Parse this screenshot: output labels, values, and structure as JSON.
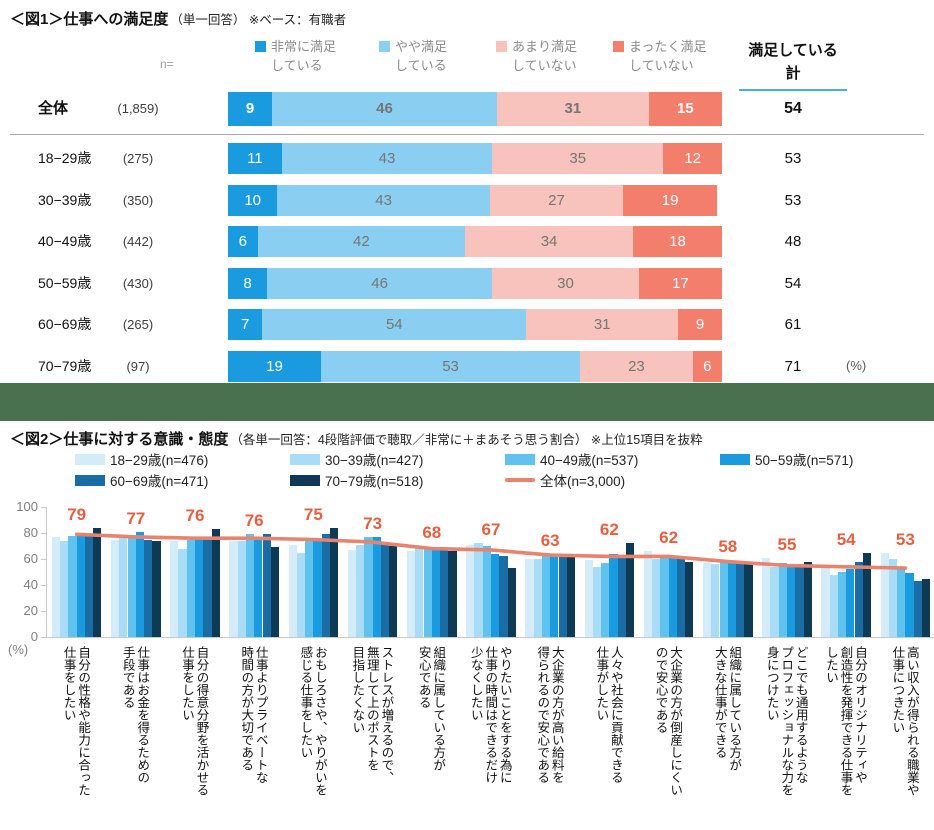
{
  "chart_data": [
    {
      "type": "bar",
      "variant": "horizontal-stacked",
      "title_bold": "＜図1＞仕事への満足度",
      "title_note": "（単一回答） ※ベース：有職者",
      "n_label": "n=",
      "total_header": "満足している\n計",
      "unit": "(%)",
      "underline_color": "#45b0e5",
      "series_labels": [
        "非常に満足\nしている",
        "やや満足\nしている",
        "あまり満足\nしていない",
        "まったく満足\nしていない"
      ],
      "series_colors": [
        "#1a9bdf",
        "#8acff2",
        "#f8c3bd",
        "#f37e6c"
      ],
      "value_text_colors": [
        "#ffffff",
        "#757575",
        "#757575",
        "#ffffff"
      ],
      "rows": [
        {
          "label": "全体",
          "n": "(1,859)",
          "values": [
            9,
            46,
            31,
            15
          ],
          "total": "54",
          "emphasis": true
        },
        {
          "label": "18−29歳",
          "n": "(275)",
          "values": [
            11,
            43,
            35,
            12
          ],
          "total": "53",
          "emphasis": false
        },
        {
          "label": "30−39歳",
          "n": "(350)",
          "values": [
            10,
            43,
            27,
            19
          ],
          "total": "53",
          "emphasis": false
        },
        {
          "label": "40−49歳",
          "n": "(442)",
          "values": [
            6,
            42,
            34,
            18
          ],
          "total": "48",
          "emphasis": false
        },
        {
          "label": "50−59歳",
          "n": "(430)",
          "values": [
            8,
            46,
            30,
            17
          ],
          "total": "54",
          "emphasis": false
        },
        {
          "label": "60−69歳",
          "n": "(265)",
          "values": [
            7,
            54,
            31,
            9
          ],
          "total": "61",
          "emphasis": false
        },
        {
          "label": "70−79歳",
          "n": "(97)",
          "values": [
            19,
            53,
            23,
            6
          ],
          "total": "71",
          "emphasis": false
        }
      ]
    },
    {
      "type": "bar",
      "variant": "grouped-with-trend-line",
      "title_bold": "＜図2＞仕事に対する意識・態度",
      "title_note": "（各単一回答：4段階評価で聴取／非常に＋まあそう思う割合） ※上位15項目を抜粋",
      "ylim": [
        0,
        100
      ],
      "yticks": [
        0,
        20,
        40,
        60,
        80,
        100
      ],
      "unit": "(%)",
      "grid": false,
      "legend_position": "top",
      "categories": [
        "自分の性格や能力に合った\n仕事をしたい",
        "仕事はお金を得るための\n手段である",
        "自分の得意分野を活かせる\n仕事をしたい",
        "仕事よりプライベートな\n時間の方が大切である",
        "おもしろさや、やりがいを\n感じる仕事をしたい",
        "ストレスが増えるので、\n無理して上のポストを\n目指したくない",
        "組織に属している方が\n安心である",
        "やりたいことをする為に\n仕事の時間はできるだけ\n少なくしたい",
        "大企業の方が高い給料を\n得られるので安心である",
        "人々や社会に貢献できる\n仕事がしたい",
        "大企業の方が倒産しにくい\nので安心である",
        "組織に属している方が\n大きな仕事ができる",
        "どこでも通用するような\nプロフェッショナルな力を\n身につけたい",
        "自分のオリジナリティや\n創造性を発揮できる仕事を\nしたい",
        "高い収入が得られる職業や\n仕事につきたい"
      ],
      "series": [
        {
          "name": "18−29歳(n=476)",
          "color": "#d4ebf9",
          "values": [
            77,
            75,
            74,
            74,
            71,
            67,
            66,
            71,
            60,
            59,
            66,
            57,
            61,
            53,
            65
          ]
        },
        {
          "name": "30−39歳(n=427)",
          "color": "#a9dcf6",
          "values": [
            74,
            77,
            68,
            74,
            65,
            71,
            70,
            72,
            60,
            54,
            60,
            56,
            54,
            48,
            60
          ]
        },
        {
          "name": "40−49歳(n=537)",
          "color": "#5fc2ef",
          "values": [
            78,
            77,
            75,
            79,
            74,
            77,
            69,
            70,
            63,
            57,
            61,
            59,
            57,
            50,
            53
          ]
        },
        {
          "name": "50−59歳(n=571)",
          "color": "#1a9bdf",
          "values": [
            79,
            81,
            75,
            75,
            74,
            77,
            68,
            64,
            63,
            64,
            62,
            58,
            54,
            52,
            49
          ]
        },
        {
          "name": "60−69歳(n=471)",
          "color": "#1a6ca5",
          "values": [
            79,
            75,
            75,
            79,
            79,
            72,
            67,
            62,
            64,
            63,
            62,
            57,
            54,
            58,
            43
          ]
        },
        {
          "name": "70−79歳(n=518)",
          "color": "#0e3a55",
          "values": [
            84,
            74,
            83,
            69,
            84,
            70,
            66,
            53,
            62,
            72,
            58,
            56,
            58,
            65,
            45
          ]
        }
      ],
      "line": {
        "name": "全体(n=3,000)",
        "color": "#e8836e",
        "label_color": "#e65f40",
        "values": [
          79,
          77,
          76,
          76,
          75,
          73,
          68,
          67,
          63,
          62,
          62,
          58,
          55,
          54,
          53
        ]
      }
    }
  ],
  "divider_color": "#49714f"
}
